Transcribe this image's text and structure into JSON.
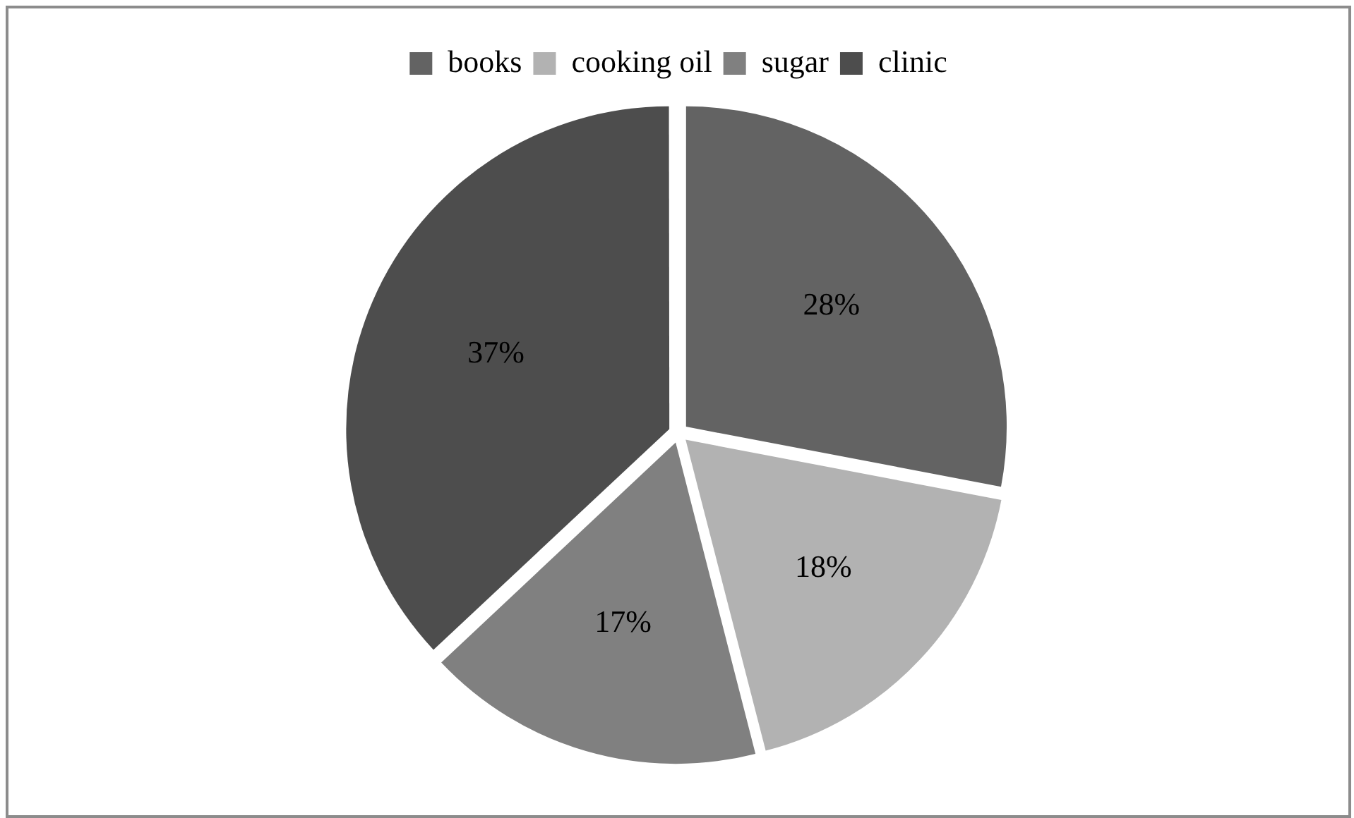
{
  "chart_data": {
    "type": "pie",
    "categories": [
      "books",
      "cooking oil",
      "sugar",
      "clinic"
    ],
    "values": [
      28,
      18,
      17,
      37
    ],
    "colors": [
      "#636363",
      "#b2b2b2",
      "#808080",
      "#4d4d4d"
    ],
    "value_labels": [
      "28%",
      "18%",
      "17%",
      "37%"
    ],
    "legend": "top"
  }
}
